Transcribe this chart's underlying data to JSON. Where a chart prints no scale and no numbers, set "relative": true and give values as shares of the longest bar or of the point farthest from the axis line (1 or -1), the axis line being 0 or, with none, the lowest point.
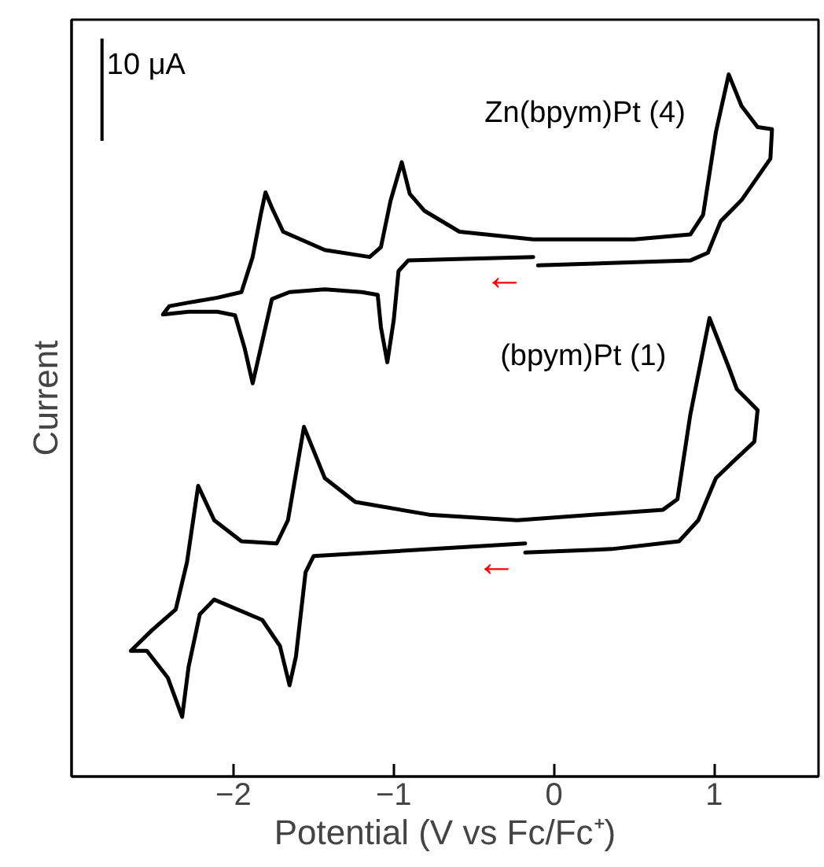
{
  "chart_data": {
    "type": "line",
    "relative": true,
    "xlabel": "Potential (V vs Fc/Fc⁺)",
    "ylabel": "Current",
    "xlim": [
      -3.01,
      1.65
    ],
    "xticks": [
      {
        "value": -2,
        "label": "−2"
      },
      {
        "value": -1,
        "label": "−1"
      },
      0,
      1
    ],
    "grid": false,
    "legend": false,
    "marker": "none",
    "line_style": "solid",
    "annotations": [
      "10 μA",
      "←",
      "←"
    ],
    "series": [
      {
        "name": "Zn(bpym)Pt (4)",
        "color": "#000000",
        "x": [
          -0.13,
          -0.6,
          -0.91,
          -0.97,
          -1.0,
          -1.04,
          -1.08,
          -1.1,
          -1.2,
          -1.43,
          -1.65,
          -1.76,
          -1.8,
          -1.85,
          -1.88,
          -1.93,
          -1.99,
          -2.1,
          -2.28,
          -2.44,
          -2.4,
          -2.28,
          -2.1,
          -1.95,
          -1.88,
          -1.83,
          -1.8,
          -1.76,
          -1.69,
          -1.43,
          -1.15,
          -1.08,
          -1.02,
          -0.95,
          -0.9,
          -0.81,
          -0.59,
          -0.13,
          0.5,
          0.85,
          0.93,
          1.01,
          1.09,
          1.17,
          1.27,
          1.36,
          1.35,
          1.17,
          1.04,
          0.96,
          0.85,
          -0.1
        ],
        "values": [
          0.74,
          0.737,
          0.735,
          0.72,
          0.65,
          0.59,
          0.64,
          0.686,
          0.69,
          0.694,
          0.69,
          0.68,
          0.64,
          0.59,
          0.56,
          0.61,
          0.657,
          0.662,
          0.662,
          0.658,
          0.67,
          0.675,
          0.682,
          0.69,
          0.74,
          0.8,
          0.832,
          0.81,
          0.776,
          0.75,
          0.74,
          0.754,
          0.82,
          0.875,
          0.83,
          0.806,
          0.776,
          0.765,
          0.765,
          0.772,
          0.8,
          0.918,
          1.0,
          0.955,
          0.925,
          0.922,
          0.88,
          0.821,
          0.791,
          0.746,
          0.735,
          0.728
        ]
      },
      {
        "name": "(bpym)Pt (1)",
        "color": "#000000",
        "x": [
          -0.18,
          -1.5,
          -1.55,
          -1.61,
          -1.65,
          -1.71,
          -1.82,
          -2.12,
          -2.21,
          -2.28,
          -2.32,
          -2.41,
          -2.54,
          -2.64,
          -2.51,
          -2.36,
          -2.29,
          -2.22,
          -2.12,
          -1.95,
          -1.73,
          -1.66,
          -1.56,
          -1.43,
          -1.24,
          -0.78,
          -0.23,
          0.68,
          0.77,
          0.85,
          0.97,
          1.09,
          1.14,
          1.27,
          1.25,
          1.11,
          1.01,
          0.9,
          0.78,
          0.36,
          -0.18
        ],
        "values": [
          0.332,
          0.314,
          0.291,
          0.171,
          0.13,
          0.186,
          0.223,
          0.252,
          0.231,
          0.156,
          0.085,
          0.141,
          0.179,
          0.179,
          0.208,
          0.238,
          0.305,
          0.414,
          0.365,
          0.335,
          0.332,
          0.365,
          0.498,
          0.425,
          0.391,
          0.373,
          0.365,
          0.38,
          0.395,
          0.515,
          0.653,
          0.583,
          0.552,
          0.522,
          0.477,
          0.447,
          0.425,
          0.365,
          0.335,
          0.324,
          0.319
        ]
      }
    ]
  }
}
